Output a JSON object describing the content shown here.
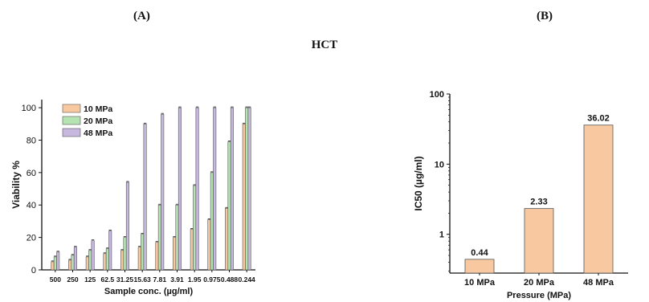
{
  "panel_labels": {
    "a": "(A)",
    "b": "(B)"
  },
  "title": "HCT",
  "colors": {
    "10 MPa": "#f8c9a0",
    "20 MPa": "#b5e3b2",
    "48 MPa": "#c7b8e0",
    "edge": "#555555"
  },
  "chart_data": [
    {
      "type": "bar",
      "panel": "(A)",
      "title": "",
      "xlabel": "Sample conc. (µg/ml)",
      "ylabel": "Viability %",
      "ylim": [
        0,
        105
      ],
      "yticks": [
        0,
        20,
        40,
        60,
        80,
        100
      ],
      "categories": [
        "500",
        "250",
        "125",
        "62.5",
        "31.25",
        "15.63",
        "7.81",
        "3.91",
        "1.95",
        "0.975",
        "0.488",
        "0.244"
      ],
      "legend": "top-left",
      "series": [
        {
          "name": "10 MPa",
          "values": [
            5,
            6,
            8,
            10,
            12,
            14,
            17,
            20,
            25,
            31,
            38,
            90
          ]
        },
        {
          "name": "20 MPa",
          "values": [
            8,
            9,
            12,
            13,
            20,
            22,
            40,
            40,
            52,
            60,
            79,
            100
          ]
        },
        {
          "name": "48 MPa",
          "values": [
            11,
            14,
            18,
            24,
            54,
            90,
            96,
            100,
            100,
            100,
            100,
            100
          ]
        }
      ]
    },
    {
      "type": "bar",
      "panel": "(B)",
      "title": "",
      "xlabel": "Pressure (MPa)",
      "ylabel": "IC50 (µg/ml)",
      "yscale": "log",
      "ylim": [
        0.28,
        100
      ],
      "yticks": [
        1,
        10,
        100
      ],
      "categories": [
        "10 MPa",
        "20 MPa",
        "48 MPa"
      ],
      "values": [
        0.44,
        2.33,
        36.02
      ],
      "data_labels": [
        "0.44",
        "2.33",
        "36.02"
      ]
    }
  ]
}
